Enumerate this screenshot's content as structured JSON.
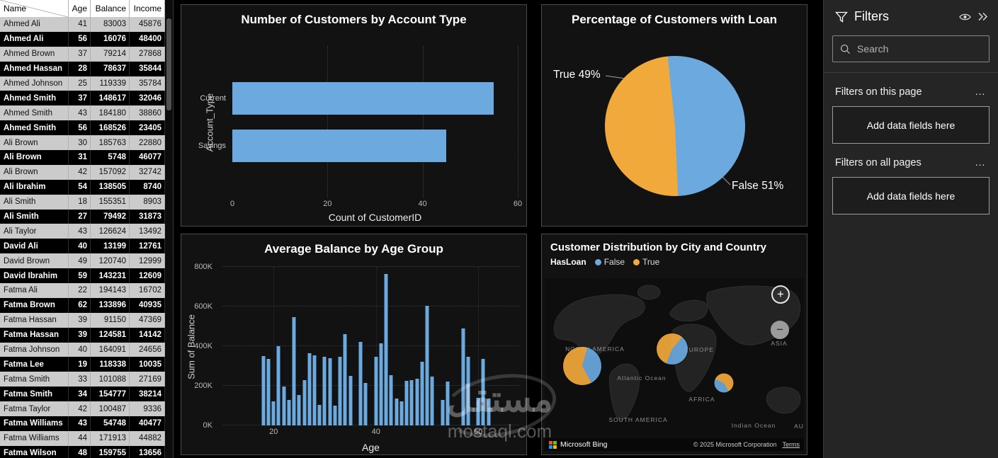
{
  "colors": {
    "blue": "#6BA9DF",
    "orange": "#F2A93B",
    "bing_logo": [
      "#F25022",
      "#7FBA00",
      "#00A4EF",
      "#FFB900"
    ]
  },
  "table": {
    "columns": [
      "Name",
      "Age",
      "Balance",
      "Income"
    ],
    "rows": [
      [
        "Ahmed Ali",
        "41",
        "83003",
        "45876"
      ],
      [
        "Ahmed Ali",
        "56",
        "16076",
        "48400"
      ],
      [
        "Ahmed Brown",
        "37",
        "79214",
        "27868"
      ],
      [
        "Ahmed Hassan",
        "28",
        "78637",
        "35844"
      ],
      [
        "Ahmed Johnson",
        "25",
        "119339",
        "35784"
      ],
      [
        "Ahmed Smith",
        "37",
        "148617",
        "32046"
      ],
      [
        "Ahmed Smith",
        "43",
        "184180",
        "38860"
      ],
      [
        "Ahmed Smith",
        "56",
        "168526",
        "23405"
      ],
      [
        "Ali Brown",
        "30",
        "185763",
        "22880"
      ],
      [
        "Ali Brown",
        "31",
        "5748",
        "46077"
      ],
      [
        "Ali Brown",
        "42",
        "157092",
        "32742"
      ],
      [
        "Ali Ibrahim",
        "54",
        "138505",
        "8740"
      ],
      [
        "Ali Smith",
        "18",
        "155351",
        "8903"
      ],
      [
        "Ali Smith",
        "27",
        "79492",
        "31873"
      ],
      [
        "Ali Taylor",
        "43",
        "126624",
        "13492"
      ],
      [
        "David Ali",
        "40",
        "13199",
        "12761"
      ],
      [
        "David Brown",
        "49",
        "120740",
        "12999"
      ],
      [
        "David Ibrahim",
        "59",
        "143231",
        "12609"
      ],
      [
        "Fatma Ali",
        "22",
        "194143",
        "16702"
      ],
      [
        "Fatma Brown",
        "62",
        "133896",
        "40935"
      ],
      [
        "Fatma Hassan",
        "39",
        "91150",
        "47369"
      ],
      [
        "Fatma Hassan",
        "39",
        "124581",
        "14142"
      ],
      [
        "Fatma Johnson",
        "40",
        "164091",
        "24656"
      ],
      [
        "Fatma Lee",
        "19",
        "118338",
        "10035"
      ],
      [
        "Fatma Smith",
        "33",
        "101088",
        "27169"
      ],
      [
        "Fatma Smith",
        "34",
        "154777",
        "38214"
      ],
      [
        "Fatma Taylor",
        "42",
        "100487",
        "9336"
      ],
      [
        "Fatma Williams",
        "43",
        "54748",
        "40477"
      ],
      [
        "Fatma Williams",
        "44",
        "171913",
        "44882"
      ],
      [
        "Fatma Wilson",
        "48",
        "159755",
        "13656"
      ]
    ]
  },
  "filters_panel": {
    "title": "Filters",
    "search_placeholder": "Search",
    "sections": [
      {
        "label": "Filters on this page",
        "more": "…",
        "dropzone": "Add data fields here"
      },
      {
        "label": "Filters on all pages",
        "more": "…",
        "dropzone": "Add data fields here"
      }
    ]
  },
  "watermark": {
    "arabic": "مستقل",
    "latin": "mostaql.com"
  },
  "chart_data": [
    {
      "type": "bar",
      "orientation": "horizontal",
      "title": "Number of Customers by Account Type",
      "categories": [
        "Current",
        "Savings"
      ],
      "values": [
        55,
        45
      ],
      "xlabel": "Count of CustomerID",
      "ylabel": "Account_Type",
      "xlim": [
        0,
        60
      ],
      "xticks": [
        0,
        20,
        40,
        60
      ]
    },
    {
      "type": "pie",
      "title": "Percentage of Customers with Loan",
      "slices": [
        {
          "label": "False",
          "pct": 51,
          "color_key": "blue"
        },
        {
          "label": "True",
          "pct": 49,
          "color_key": "orange"
        }
      ],
      "label_true": "True 49%",
      "label_false": "False 51%"
    },
    {
      "type": "bar",
      "title": "Average Balance by Age Group",
      "xlabel": "Age",
      "ylabel": "Sum of Balance",
      "ylim": [
        0,
        800000
      ],
      "yticks": [
        "0K",
        "200K",
        "400K",
        "600K",
        "800K"
      ],
      "xlim": [
        10,
        68
      ],
      "xticks": [
        20,
        40,
        60
      ],
      "points_unit": "K",
      "points": [
        [
          18,
          350
        ],
        [
          19,
          335
        ],
        [
          20,
          120
        ],
        [
          21,
          400
        ],
        [
          22,
          195
        ],
        [
          23,
          130
        ],
        [
          24,
          545
        ],
        [
          25,
          155
        ],
        [
          26,
          230
        ],
        [
          27,
          365
        ],
        [
          28,
          355
        ],
        [
          29,
          105
        ],
        [
          30,
          345
        ],
        [
          31,
          340
        ],
        [
          32,
          100
        ],
        [
          33,
          345
        ],
        [
          34,
          460
        ],
        [
          35,
          250
        ],
        [
          37,
          420
        ],
        [
          38,
          215
        ],
        [
          40,
          345
        ],
        [
          41,
          415
        ],
        [
          42,
          765
        ],
        [
          43,
          255
        ],
        [
          44,
          135
        ],
        [
          45,
          120
        ],
        [
          46,
          225
        ],
        [
          47,
          230
        ],
        [
          48,
          235
        ],
        [
          49,
          320
        ],
        [
          50,
          605
        ],
        [
          51,
          245
        ],
        [
          53,
          130
        ],
        [
          54,
          220
        ],
        [
          57,
          490
        ],
        [
          58,
          345
        ],
        [
          60,
          140
        ],
        [
          61,
          335
        ],
        [
          62,
          135
        ]
      ]
    },
    {
      "type": "map",
      "title": "Customer Distribution by City and Country",
      "legend_title": "HasLoan",
      "legend": [
        {
          "label": "False",
          "color_key": "blue"
        },
        {
          "label": "True",
          "color_key": "orange"
        }
      ],
      "region_labels": [
        {
          "text": "NORTH AMERICA",
          "x": 71,
          "y": 100
        },
        {
          "text": "EUROPE",
          "x": 218,
          "y": 101
        },
        {
          "text": "ASIA",
          "x": 331,
          "y": 92
        },
        {
          "text": "Atlantic Ocean",
          "x": 137,
          "y": 141
        },
        {
          "text": "AFRICA",
          "x": 222,
          "y": 171
        },
        {
          "text": "SOUTH AMERICA",
          "x": 132,
          "y": 200
        },
        {
          "text": "Indian Ocean",
          "x": 295,
          "y": 208
        },
        {
          "text": "AU",
          "x": 359,
          "y": 209
        }
      ],
      "bubbles": [
        {
          "x": 53,
          "y": 124,
          "d": 54,
          "blue_pct": 38,
          "rot": 15
        },
        {
          "x": 180,
          "y": 100,
          "d": 44,
          "blue_pct": 45,
          "rot": 40
        },
        {
          "x": 253,
          "y": 148,
          "d": 27,
          "blue_pct": 40,
          "rot": 150
        }
      ],
      "zoom_in": "+",
      "zoom_out": "−",
      "attribution": {
        "brand": "Microsoft Bing",
        "copyright": "© 2025 Microsoft Corporation",
        "terms": "Terms"
      }
    }
  ]
}
